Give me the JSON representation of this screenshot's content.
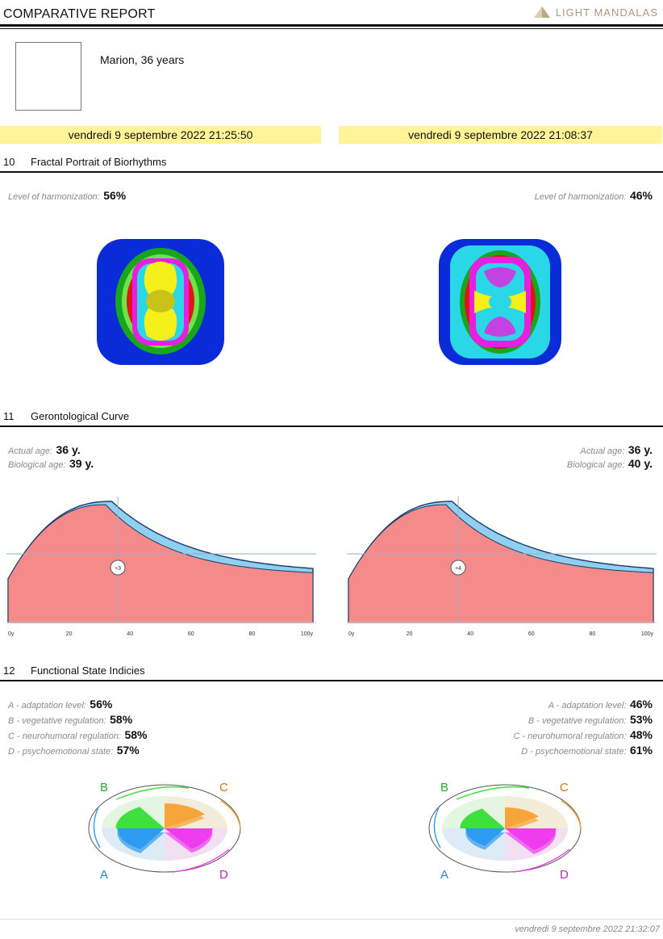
{
  "header": {
    "title": "COMPARATIVE REPORT",
    "logo_text": "LIGHT MANDALAS"
  },
  "patient": {
    "name": "Marion, 36 years"
  },
  "sessions": [
    {
      "date": "vendredi 9 septembre 2022 21:25:50"
    },
    {
      "date": "vendredi 9 septembre 2022 21:08:37"
    }
  ],
  "sections": {
    "fractal": {
      "number": "10",
      "title": "Fractal Portrait of Biorhythms"
    },
    "geronto": {
      "number": "11",
      "title": "Gerontological Curve"
    },
    "functional": {
      "number": "12",
      "title": "Functional State Indicies"
    }
  },
  "fractal": {
    "label": "Level of harmonization:",
    "left_value": "56%",
    "right_value": "46%",
    "colors": {
      "outer": "#0a2bd8",
      "green1": "#19a51c",
      "green2": "#6fe34c",
      "yellow": "#f5ef1a",
      "red": "#e01515",
      "cyan": "#2ad7e6",
      "magenta": "#e81ee0"
    }
  },
  "geronto": {
    "actual_label": "Actual age:",
    "bio_label": "Biological age:",
    "left": {
      "actual": "36 y.",
      "bio": "39 y.",
      "marker": "+3"
    },
    "right": {
      "actual": "36 y.",
      "bio": "40 y.",
      "marker": "+4"
    },
    "ticks": [
      "0y",
      "20",
      "40",
      "60",
      "80",
      "100y"
    ]
  },
  "chart_data": [
    {
      "type": "area",
      "x_ticks": [
        "0y",
        "20",
        "40",
        "60",
        "80",
        "100y"
      ],
      "xlim": [
        0,
        100
      ],
      "actual_age": 36,
      "biological_age": 39,
      "marker_label": "+3",
      "colors": {
        "biological": "#f58a8a",
        "actual": "#8fd0f0",
        "line": "#1a3a6a",
        "axis": "#9ab0c0"
      }
    },
    {
      "type": "area",
      "x_ticks": [
        "0y",
        "20",
        "40",
        "60",
        "80",
        "100y"
      ],
      "xlim": [
        0,
        100
      ],
      "actual_age": 36,
      "biological_age": 40,
      "marker_label": "+4",
      "colors": {
        "biological": "#f58a8a",
        "actual": "#8fd0f0",
        "line": "#1a3a6a",
        "axis": "#9ab0c0"
      }
    },
    {
      "type": "pie",
      "labels": [
        "A",
        "B",
        "C",
        "D"
      ],
      "values": [
        56,
        58,
        58,
        57
      ],
      "colors": {
        "A": "#2d9cf0",
        "B": "#3ee03e",
        "C": "#f5a53a",
        "D": "#ee3cee"
      }
    },
    {
      "type": "pie",
      "labels": [
        "A",
        "B",
        "C",
        "D"
      ],
      "values": [
        46,
        53,
        48,
        61
      ],
      "colors": {
        "A": "#2d9cf0",
        "B": "#3ee03e",
        "C": "#f5a53a",
        "D": "#ee3cee"
      }
    }
  ],
  "functional": {
    "labels": {
      "a": "A - adaptation level:",
      "b": "B - vegetative regulation:",
      "c": "C - neurohumoral regulation:",
      "d": "D - psychoemotional state:"
    },
    "left": {
      "a": "56%",
      "b": "58%",
      "c": "58%",
      "d": "57%"
    },
    "right": {
      "a": "46%",
      "b": "53%",
      "c": "48%",
      "d": "61%"
    },
    "pie_labels": {
      "a": "A",
      "b": "B",
      "c": "C",
      "d": "D"
    }
  },
  "footer": {
    "date": "vendredi 9 septembre 2022 21:32:07"
  }
}
